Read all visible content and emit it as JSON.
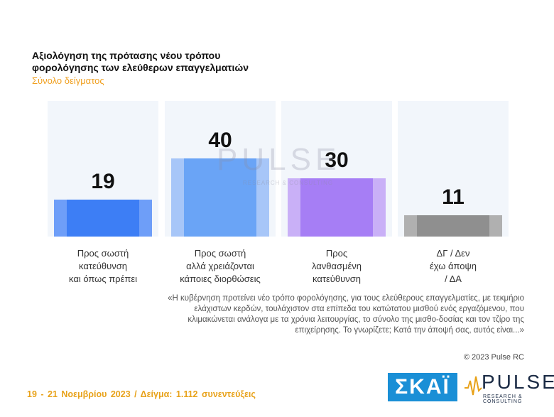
{
  "title": "Αξιολόγηση της πρότασης νέου τρόπου φορολόγησης των ελεύθερων επαγγελματιών",
  "subtitle": "Σύνολο δείγματος",
  "chart_data": {
    "type": "bar",
    "categories": [
      "Προς σωστή\nκατεύθυνση\nκαι όπως πρέπει",
      "Προς σωστή\nαλλά χρειάζονται\nκάποιες διορθώσεις",
      "Προς\nλανθασμένη\nκατεύθυνση",
      "ΔΓ / Δεν\nέχω άποψη\n/ ΔΑ"
    ],
    "values": [
      19,
      40,
      30,
      11
    ],
    "colors": [
      "#3d7ef5",
      "#6aa4f6",
      "#a67ef5",
      "#8f8f8f"
    ],
    "light_colors": [
      "#6e9ef8",
      "#a7c6f8",
      "#c9b0f7",
      "#b0b0b0"
    ],
    "ylim": [
      0,
      100
    ],
    "value_labels": [
      "19",
      "40",
      "30",
      "11"
    ]
  },
  "watermark": "PULSE",
  "watermark_sub": "RESEARCH & CONSULTING",
  "quote": "«Η κυβέρνηση προτείνει νέο τρόπο φορολόγησης, για τους ελεύθερους επαγγελματίες, με τεκμήριο ελάχιστων κερδών, τουλάχιστον στα επίπεδα του κατώτατου μισθού ενός εργαζόμενου, που κλιμακώνεται ανάλογα με τα χρόνια λειτουργίας, το σύνολο της μισθο-δοσίας και τον τζίρο της επιχείρησης. Το γνωρίζετε; Κατά την άποψή σας, αυτός είναι...»",
  "copyright": "© 2023 Pulse RC",
  "footer": "19 - 21 Νοεμβρίου 2023 / Δείγμα: 1.112 συνεντεύξεις",
  "logo_skai": "ΣΚΑΪ",
  "logo_pulse": "PULSE",
  "logo_pulse_sub": "RESEARCH & CONSULTING"
}
